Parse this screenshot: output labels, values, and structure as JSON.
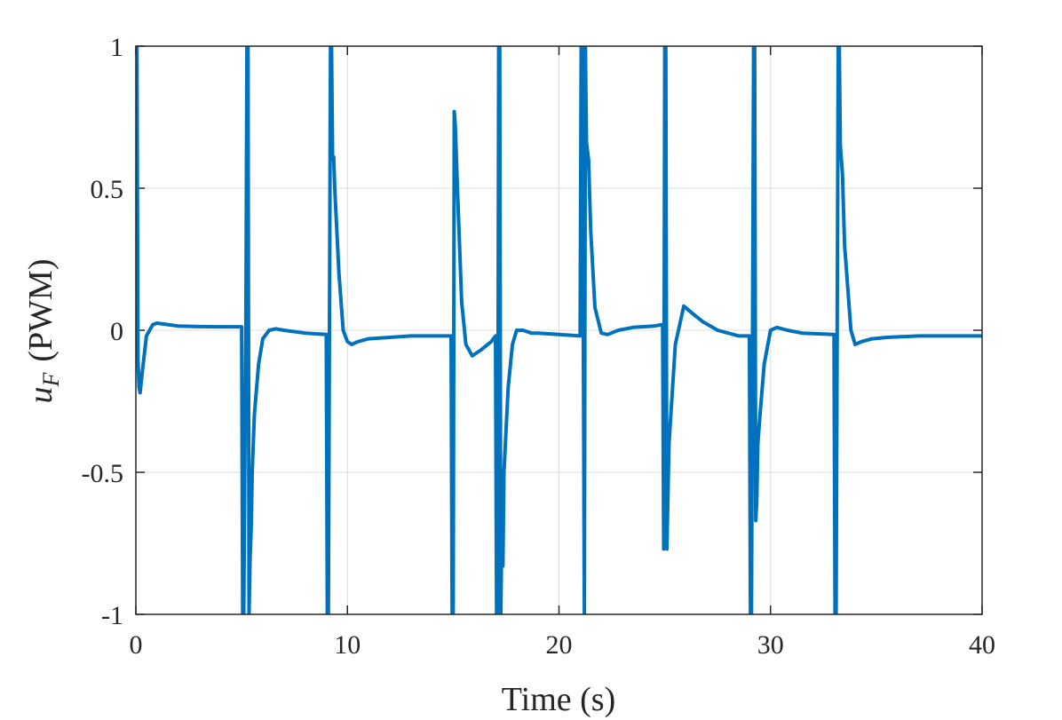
{
  "chart_data": {
    "type": "line",
    "xlabel": "Time (s)",
    "ylabel_var": "u",
    "ylabel_sub": "F",
    "ylabel_unit": "(PWM)",
    "xlim": [
      0,
      40
    ],
    "ylim": [
      -1,
      1
    ],
    "xticks": [
      0,
      10,
      20,
      30,
      40
    ],
    "yticks": [
      -1,
      -0.5,
      0,
      0.5,
      1
    ],
    "xtick_labels": [
      "0",
      "10",
      "20",
      "30",
      "40"
    ],
    "ytick_labels": [
      "-1",
      "-0.5",
      "0",
      "0.5",
      "1"
    ],
    "grid": true,
    "line_color": "#0072BD",
    "series": [
      {
        "x": [
          0,
          0.05,
          0.1,
          0.15,
          0.2,
          0.3,
          0.5,
          0.8,
          1.0,
          1.5,
          2.0,
          3.0,
          4.0,
          5.0,
          5.05,
          5.1,
          5.2,
          5.25,
          5.3,
          5.35,
          5.4,
          5.45,
          5.5,
          5.6,
          5.8,
          6.0,
          6.3,
          6.6,
          7.0,
          8.0,
          9.0,
          9.05,
          9.1,
          9.2,
          9.25,
          9.3,
          9.35,
          9.4,
          9.6,
          9.8,
          10.0,
          10.2,
          10.5,
          11.0,
          12.0,
          13.0,
          14.0,
          14.9,
          14.95,
          15.0,
          15.05,
          15.1,
          15.2,
          15.4,
          15.6,
          15.9,
          16.3,
          16.8,
          17.0,
          17.05,
          17.1,
          17.15,
          17.2,
          17.25,
          17.3,
          17.35,
          17.4,
          17.6,
          17.8,
          18.0,
          18.3,
          18.7,
          19.0,
          20.0,
          21.0,
          21.05,
          21.1,
          21.2,
          21.25,
          21.3,
          21.4,
          21.5,
          21.7,
          22.0,
          22.3,
          22.8,
          23.5,
          24.5,
          24.9,
          24.95,
          25.0,
          25.05,
          25.1,
          25.2,
          25.5,
          25.9,
          26.3,
          26.8,
          27.5,
          28.5,
          29.0,
          29.05,
          29.1,
          29.2,
          29.25,
          29.3,
          29.35,
          29.4,
          29.5,
          29.7,
          30.0,
          30.3,
          30.8,
          31.5,
          33.0,
          33.05,
          33.1,
          33.2,
          33.25,
          33.3,
          33.35,
          33.4,
          33.5,
          33.8,
          34.0,
          34.3,
          34.8,
          35.5,
          37.0,
          40.0
        ],
        "y": [
          1,
          1,
          -0.1,
          -0.2,
          -0.22,
          -0.15,
          -0.02,
          0.02,
          0.025,
          0.02,
          0.015,
          0.013,
          0.012,
          0.012,
          -1,
          -1,
          0.012,
          1,
          1,
          -1,
          -0.8,
          -0.7,
          -0.5,
          -0.3,
          -0.12,
          -0.03,
          0.0,
          0.005,
          0.0,
          -0.01,
          -0.015,
          -1,
          -1,
          1,
          1,
          0.6,
          0.61,
          0.5,
          0.2,
          0.0,
          -0.04,
          -0.05,
          -0.04,
          -0.03,
          -0.025,
          -0.02,
          -0.02,
          -0.02,
          -1,
          -1,
          0.77,
          0.72,
          0.5,
          0.1,
          -0.05,
          -0.09,
          -0.07,
          -0.04,
          -0.02,
          -1,
          -1,
          1,
          1,
          -1,
          -0.7,
          -0.83,
          -0.5,
          -0.2,
          -0.05,
          0.0,
          0.0,
          -0.01,
          -0.01,
          -0.015,
          -0.02,
          1,
          1,
          -1,
          1,
          0.66,
          0.6,
          0.35,
          0.08,
          -0.01,
          -0.015,
          0.0,
          0.01,
          0.015,
          0.02,
          -0.77,
          1,
          1,
          -0.77,
          -0.4,
          -0.05,
          0.085,
          0.06,
          0.03,
          0.0,
          -0.02,
          -0.02,
          -1,
          -1,
          1,
          1,
          -0.67,
          -0.6,
          -0.4,
          -0.3,
          -0.12,
          0.0,
          0.01,
          0.0,
          -0.01,
          -0.015,
          -1,
          -1,
          1,
          1,
          0.65,
          0.6,
          0.55,
          0.3,
          0.0,
          -0.05,
          -0.04,
          -0.03,
          -0.025,
          -0.02,
          -0.02
        ]
      }
    ]
  }
}
